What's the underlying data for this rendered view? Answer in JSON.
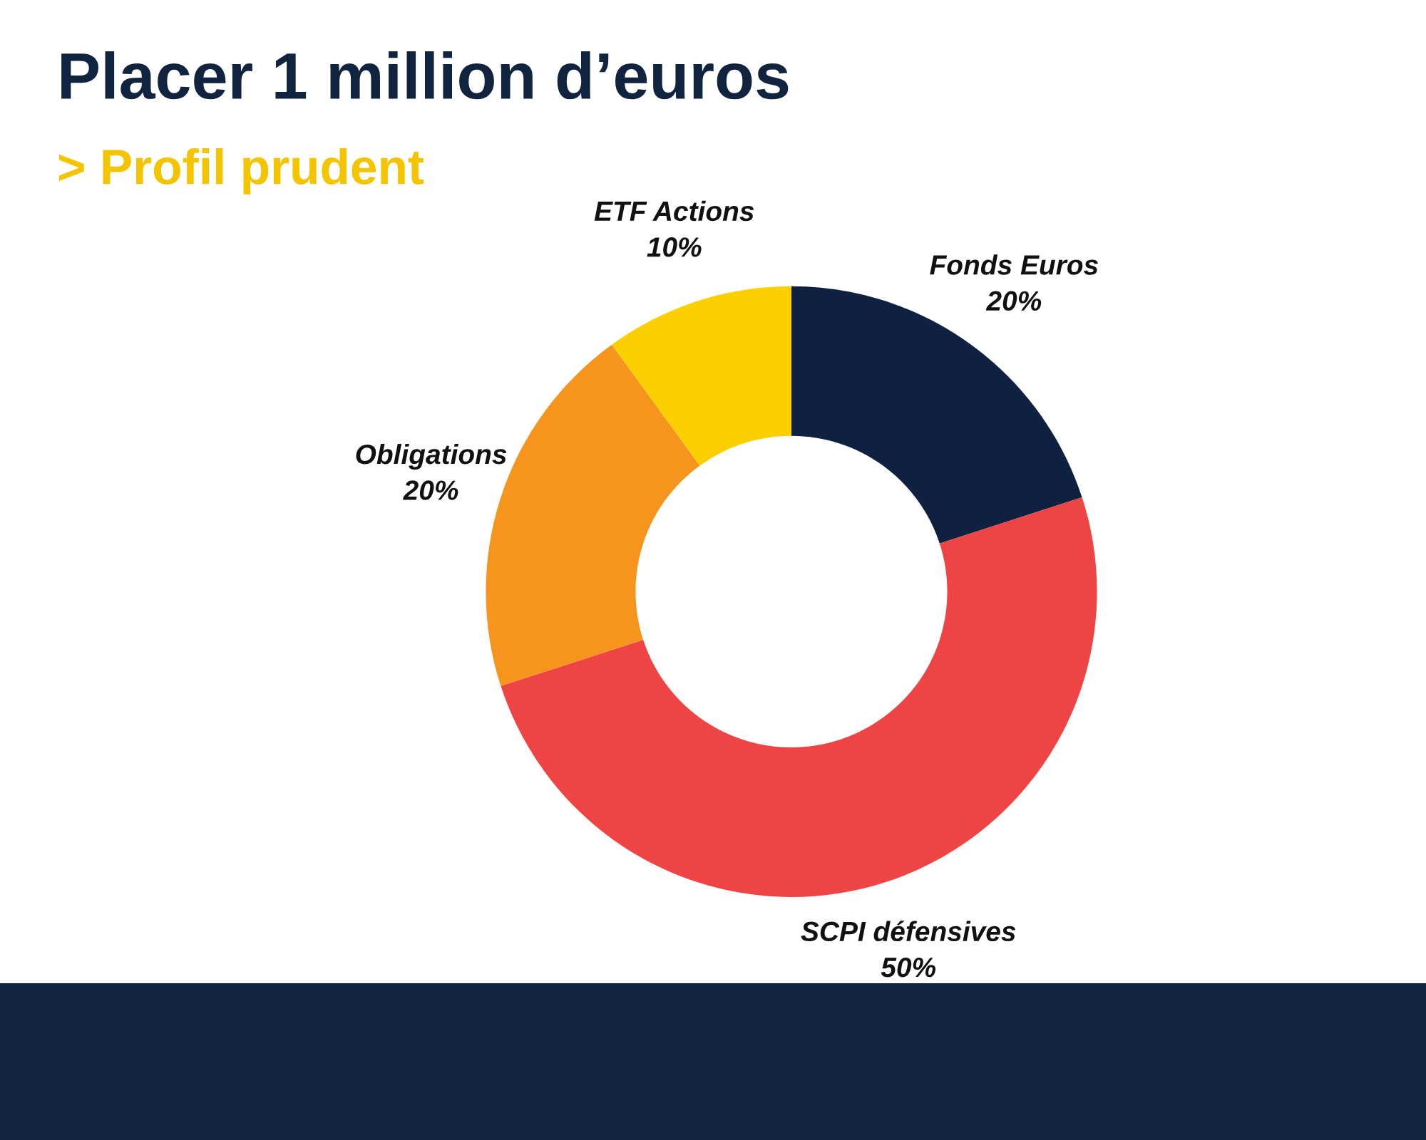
{
  "chart_data": {
    "type": "donut",
    "title": "Placer 1 million d’euros",
    "subtitle": "> Profil prudent",
    "categories": [
      "Fonds Euros",
      "SCPI défensives",
      "Obligations",
      "ETF Actions"
    ],
    "values": [
      20,
      50,
      20,
      10
    ],
    "colors": [
      "#0f2140",
      "#ef4444",
      "#f7941d",
      "#fcd000"
    ],
    "value_labels": [
      "20%",
      "50%",
      "20%",
      "10%"
    ]
  }
}
